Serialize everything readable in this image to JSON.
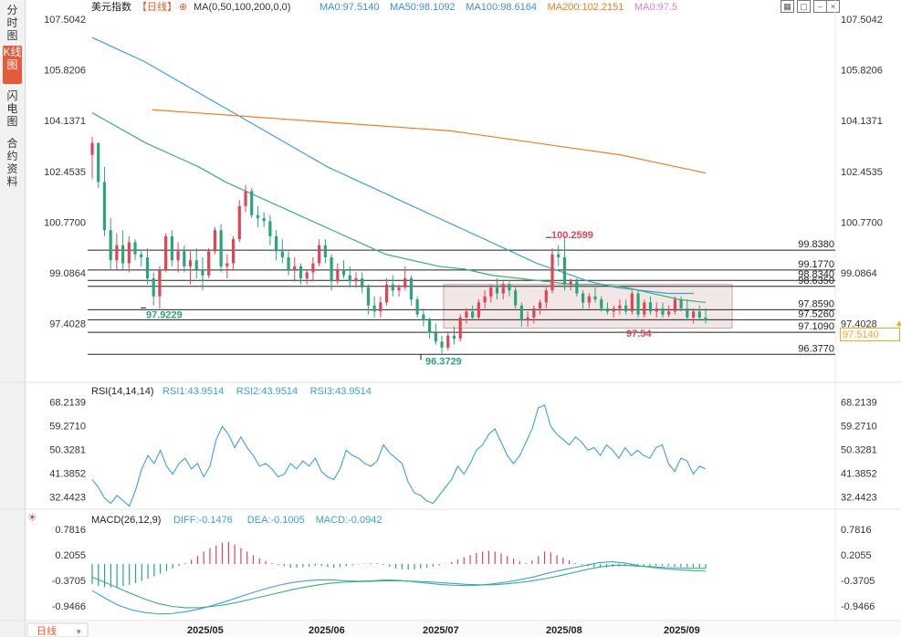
{
  "sidebar": {
    "tabs": [
      {
        "label": "分时图",
        "active": false
      },
      {
        "label": "K线图",
        "active": true
      },
      {
        "label": "闪电图",
        "active": false
      },
      {
        "label": "合约资料",
        "active": false
      }
    ]
  },
  "header": {
    "title": "美元指数",
    "period": "【日线】",
    "ma_params": "MA(0,50,100,200,0,0)",
    "ma_values": [
      {
        "label": "MA0:97.5140",
        "color": "#3b8fd9"
      },
      {
        "label": "MA50:98.1092",
        "color": "#3b8fd9"
      },
      {
        "label": "MA100:98.6164",
        "color": "#3b8fd9"
      },
      {
        "label": "MA200:102.2151",
        "color": "#f07c1e"
      },
      {
        "label": "MA0:97.5",
        "color": "#d77fd0"
      }
    ]
  },
  "period_button": "日线",
  "price_tag": "97.5140",
  "colors": {
    "up": "#e04455",
    "down": "#2aa57a",
    "ma50": "#3bb07a",
    "ma100": "#3ba0d8",
    "ma200": "#f07c1e",
    "rsi": "#3ba0d8",
    "diff": "#3ba0d8",
    "dea": "#3bb07a"
  },
  "chart_data": [
    {
      "type": "candlestick",
      "title": "美元指数",
      "y_ticks": [
        "107.5042",
        "105.8206",
        "104.1371",
        "102.4535",
        "100.7700",
        "99.0864",
        "97.4028"
      ],
      "ylim": [
        95.9,
        107.6
      ],
      "x_ticks": [
        "2025/05",
        "2025/06",
        "2025/07",
        "2025/08",
        "2025/09"
      ],
      "candles": [
        [
          103.0,
          103.6,
          102.2,
          103.4
        ],
        [
          103.4,
          103.4,
          101.9,
          102.1
        ],
        [
          102.1,
          102.6,
          100.3,
          100.5
        ],
        [
          100.5,
          100.9,
          99.2,
          99.5
        ],
        [
          99.5,
          100.4,
          99.2,
          100.0
        ],
        [
          100.0,
          100.5,
          99.2,
          99.4
        ],
        [
          99.4,
          100.3,
          99.1,
          100.1
        ],
        [
          100.1,
          100.2,
          99.5,
          99.7
        ],
        [
          99.7,
          99.8,
          99.3,
          99.6
        ],
        [
          99.6,
          99.9,
          98.7,
          98.9
        ],
        [
          98.9,
          99.1,
          98.0,
          98.3
        ],
        [
          98.3,
          99.3,
          97.9,
          99.2
        ],
        [
          99.2,
          100.4,
          99.1,
          100.3
        ],
        [
          100.3,
          100.5,
          99.3,
          99.5
        ],
        [
          99.5,
          100.1,
          99.1,
          99.8
        ],
        [
          99.8,
          100.0,
          99.1,
          99.3
        ],
        [
          99.3,
          99.8,
          98.7,
          99.5
        ],
        [
          99.5,
          99.9,
          98.9,
          99.2
        ],
        [
          99.2,
          99.6,
          98.5,
          99.0
        ],
        [
          99.0,
          99.9,
          98.9,
          99.8
        ],
        [
          99.8,
          100.6,
          99.7,
          100.5
        ],
        [
          100.5,
          100.7,
          99.1,
          99.3
        ],
        [
          99.3,
          99.7,
          98.9,
          99.4
        ],
        [
          99.4,
          100.3,
          99.2,
          100.2
        ],
        [
          100.2,
          101.5,
          100.1,
          101.3
        ],
        [
          101.3,
          102.0,
          101.1,
          101.8
        ],
        [
          101.8,
          101.9,
          100.9,
          101.0
        ],
        [
          101.0,
          101.3,
          100.6,
          100.9
        ],
        [
          100.9,
          101.1,
          100.6,
          100.8
        ],
        [
          100.8,
          101.0,
          100.0,
          100.3
        ],
        [
          100.3,
          100.5,
          99.5,
          99.8
        ],
        [
          99.8,
          100.2,
          99.4,
          99.6
        ],
        [
          99.6,
          99.8,
          99.0,
          99.2
        ],
        [
          99.2,
          99.6,
          98.8,
          99.3
        ],
        [
          99.3,
          99.4,
          98.7,
          98.9
        ],
        [
          98.9,
          99.2,
          98.7,
          99.1
        ],
        [
          99.1,
          99.6,
          98.8,
          99.4
        ],
        [
          99.4,
          100.2,
          99.3,
          100.0
        ],
        [
          100.0,
          100.2,
          99.4,
          99.6
        ],
        [
          99.6,
          99.7,
          98.5,
          98.8
        ],
        [
          98.8,
          99.4,
          98.7,
          99.2
        ],
        [
          99.2,
          99.5,
          98.9,
          99.0
        ],
        [
          99.0,
          99.3,
          98.6,
          98.8
        ],
        [
          98.8,
          99.1,
          98.6,
          98.9
        ],
        [
          98.9,
          99.1,
          98.4,
          98.6
        ],
        [
          98.6,
          98.7,
          97.7,
          98.0
        ],
        [
          98.0,
          98.3,
          97.6,
          97.8
        ],
        [
          97.8,
          98.3,
          97.6,
          98.1
        ],
        [
          98.1,
          98.9,
          98.0,
          98.7
        ],
        [
          98.7,
          99.0,
          98.3,
          98.5
        ],
        [
          98.5,
          98.7,
          98.3,
          98.6
        ],
        [
          98.6,
          99.3,
          98.5,
          98.9
        ],
        [
          98.9,
          99.0,
          98.0,
          98.2
        ],
        [
          98.2,
          98.3,
          97.6,
          97.7
        ],
        [
          97.7,
          97.9,
          97.3,
          97.5
        ],
        [
          97.5,
          97.6,
          96.9,
          97.1
        ],
        [
          97.1,
          97.4,
          96.7,
          96.8
        ],
        [
          96.8,
          97.0,
          96.4,
          96.6
        ],
        [
          96.6,
          97.1,
          96.5,
          97.0
        ],
        [
          97.0,
          97.3,
          96.7,
          96.9
        ],
        [
          96.9,
          97.7,
          96.8,
          97.6
        ],
        [
          97.6,
          97.9,
          97.4,
          97.8
        ],
        [
          97.8,
          98.0,
          97.5,
          97.6
        ],
        [
          97.6,
          98.2,
          97.5,
          98.1
        ],
        [
          98.1,
          98.5,
          97.9,
          98.3
        ],
        [
          98.3,
          98.7,
          98.1,
          98.6
        ],
        [
          98.6,
          98.9,
          98.2,
          98.4
        ],
        [
          98.4,
          98.8,
          98.2,
          98.7
        ],
        [
          98.7,
          98.8,
          98.3,
          98.5
        ],
        [
          98.5,
          98.6,
          97.9,
          98.0
        ],
        [
          98.0,
          98.1,
          97.3,
          97.5
        ],
        [
          97.5,
          97.8,
          97.3,
          97.6
        ],
        [
          97.6,
          98.0,
          97.4,
          97.9
        ],
        [
          97.9,
          98.2,
          97.7,
          98.1
        ],
        [
          98.1,
          98.6,
          97.9,
          98.5
        ],
        [
          98.5,
          99.9,
          98.4,
          99.7
        ],
        [
          99.7,
          100.0,
          99.3,
          99.6
        ],
        [
          99.6,
          100.3,
          98.5,
          98.7
        ],
        [
          98.7,
          98.9,
          98.5,
          98.8
        ],
        [
          98.8,
          98.9,
          98.3,
          98.4
        ],
        [
          98.4,
          98.5,
          97.9,
          98.1
        ],
        [
          98.1,
          98.4,
          97.9,
          98.3
        ],
        [
          98.3,
          98.6,
          98.1,
          98.2
        ],
        [
          98.2,
          98.3,
          97.8,
          97.9
        ],
        [
          97.9,
          98.1,
          97.7,
          97.8
        ],
        [
          97.8,
          98.0,
          97.6,
          97.9
        ],
        [
          97.9,
          98.2,
          97.7,
          98.0
        ],
        [
          98.0,
          98.2,
          97.7,
          97.8
        ],
        [
          97.8,
          98.5,
          97.7,
          98.4
        ],
        [
          98.4,
          98.5,
          97.6,
          97.7
        ],
        [
          97.7,
          98.2,
          97.6,
          98.1
        ],
        [
          98.1,
          98.3,
          97.7,
          97.8
        ],
        [
          97.8,
          98.1,
          97.6,
          97.9
        ],
        [
          97.9,
          98.1,
          97.6,
          97.7
        ],
        [
          97.7,
          98.0,
          97.6,
          97.8
        ],
        [
          97.8,
          98.3,
          97.7,
          98.2
        ],
        [
          98.2,
          98.3,
          97.8,
          97.9
        ],
        [
          97.9,
          98.2,
          97.5,
          97.6
        ],
        [
          97.6,
          97.9,
          97.4,
          97.8
        ],
        [
          97.8,
          98.0,
          97.5,
          97.6
        ],
        [
          97.6,
          97.9,
          97.4,
          97.5
        ]
      ],
      "ma100": [
        106.9,
        106.5,
        106.1,
        105.6,
        105.1,
        104.6,
        104.1,
        103.6,
        103.1,
        102.6,
        102.2,
        101.8,
        101.4,
        101.0,
        100.6,
        100.2,
        99.8,
        99.4,
        99.1,
        98.8,
        98.6,
        98.5,
        98.4,
        98.4
      ],
      "ma50": [
        104.4,
        103.9,
        103.4,
        103.0,
        102.6,
        102.1,
        101.7,
        101.3,
        100.9,
        100.5,
        100.1,
        99.7,
        99.5,
        99.3,
        99.2,
        99.0,
        98.9,
        98.8,
        98.7,
        98.7,
        98.6,
        98.4,
        98.2,
        98.1
      ],
      "ma200": [
        104.5,
        104.4,
        104.3,
        104.2,
        104.1,
        104.0,
        103.9,
        103.8,
        103.6,
        103.4,
        103.2,
        103.0,
        102.7,
        102.4
      ],
      "hlines": [
        99.838,
        99.177,
        98.834,
        98.635,
        97.859,
        97.526,
        97.109,
        96.377
      ],
      "hline_labels": [
        "99.8380",
        "99.1770",
        "98.8340",
        "98.6350",
        "97.8590",
        "97.5260",
        "97.1090",
        "96.3770"
      ],
      "annotations": [
        "100.2599",
        "97.9229",
        "96.3729",
        "97.54"
      ]
    },
    {
      "type": "line",
      "title": "RSI(14,14,14)",
      "legend": [
        "RSI1:43.9514",
        "RSI2:43.9514",
        "RSI3:43.9514"
      ],
      "y_ticks": [
        "68.2139",
        "59.2710",
        "50.3281",
        "41.3852",
        "32.4423"
      ],
      "ylim": [
        28.5,
        69.0
      ],
      "series": [
        {
          "name": "RSI1",
          "values": [
            39,
            36,
            32,
            30,
            33,
            31,
            29,
            35,
            43,
            48,
            45,
            50,
            44,
            41,
            45,
            47,
            43,
            45,
            40,
            44,
            54,
            59,
            56,
            51,
            55,
            51,
            48,
            44,
            45,
            43,
            40,
            41,
            45,
            43,
            46,
            44,
            47,
            42,
            40,
            39,
            43,
            50,
            48,
            47,
            45,
            44,
            46,
            52,
            49,
            47,
            45,
            38,
            34,
            33,
            31,
            30,
            33,
            36,
            39,
            44,
            41,
            45,
            50,
            52,
            56,
            58,
            53,
            48,
            45,
            48,
            53,
            58,
            66,
            67,
            59,
            56,
            54,
            52,
            55,
            53,
            50,
            51,
            48,
            52,
            50,
            47,
            51,
            48,
            50,
            48,
            47,
            51,
            52,
            45,
            42,
            47,
            46,
            41,
            44,
            43
          ]
        }
      ]
    },
    {
      "type": "bar",
      "title": "MACD(26,12,9)",
      "legend": [
        "DIFF:-0.1476",
        "DEA:-0.1005",
        "MACD:-0.0942"
      ],
      "y_ticks": [
        "0.7816",
        "0.2055",
        "-0.3705",
        "-0.9466"
      ],
      "ylim": [
        -1.28,
        0.95
      ],
      "macd": [
        -0.45,
        -0.5,
        -0.52,
        -0.53,
        -0.52,
        -0.5,
        -0.47,
        -0.43,
        -0.38,
        -0.33,
        -0.28,
        -0.22,
        -0.16,
        -0.1,
        -0.05,
        0.02,
        0.1,
        0.18,
        0.28,
        0.36,
        0.42,
        0.48,
        0.5,
        0.44,
        0.36,
        0.28,
        0.2,
        0.13,
        0.07,
        0.02,
        -0.02,
        -0.05,
        -0.08,
        -0.08,
        -0.07,
        -0.06,
        -0.04,
        -0.05,
        -0.07,
        -0.08,
        -0.07,
        -0.05,
        -0.03,
        -0.01,
        0.01,
        0.02,
        0.02,
        -0.02,
        -0.06,
        -0.1,
        -0.12,
        -0.13,
        -0.12,
        -0.1,
        -0.08,
        -0.06,
        -0.03,
        0.01,
        0.05,
        0.1,
        0.15,
        0.2,
        0.25,
        0.28,
        0.3,
        0.28,
        0.24,
        0.18,
        0.12,
        0.06,
        0.02,
        0.08,
        0.18,
        0.28,
        0.26,
        0.2,
        0.14,
        0.08,
        0.02,
        -0.02,
        -0.05,
        -0.07,
        -0.08,
        -0.08,
        -0.07,
        -0.06,
        -0.05,
        -0.05,
        -0.06,
        -0.06,
        -0.05,
        -0.04,
        -0.04,
        -0.05,
        -0.06,
        -0.07,
        -0.07,
        -0.08,
        -0.08,
        -0.09
      ],
      "diff": [
        -0.6,
        -0.78,
        -0.94,
        -1.04,
        -1.1,
        -1.13,
        -1.12,
        -1.08,
        -1.02,
        -0.94,
        -0.85,
        -0.75,
        -0.65,
        -0.56,
        -0.48,
        -0.42,
        -0.38,
        -0.36,
        -0.36,
        -0.38,
        -0.39,
        -0.38,
        -0.36,
        -0.37,
        -0.4,
        -0.43,
        -0.46,
        -0.48,
        -0.49,
        -0.48,
        -0.45,
        -0.41,
        -0.36,
        -0.3,
        -0.22,
        -0.15,
        -0.09,
        -0.03,
        0.03,
        0.05,
        0.02,
        -0.04,
        -0.08,
        -0.11,
        -0.13,
        -0.15,
        -0.16
      ],
      "dea": [
        -0.3,
        -0.42,
        -0.55,
        -0.68,
        -0.8,
        -0.9,
        -0.96,
        -0.99,
        -0.99,
        -0.96,
        -0.92,
        -0.86,
        -0.79,
        -0.72,
        -0.65,
        -0.58,
        -0.52,
        -0.47,
        -0.43,
        -0.41,
        -0.4,
        -0.39,
        -0.38,
        -0.38,
        -0.39,
        -0.4,
        -0.42,
        -0.44,
        -0.46,
        -0.47,
        -0.47,
        -0.45,
        -0.42,
        -0.38,
        -0.33,
        -0.27,
        -0.2,
        -0.13,
        -0.07,
        -0.03,
        -0.03,
        -0.05,
        -0.06,
        -0.08,
        -0.09,
        -0.1,
        -0.1
      ]
    }
  ]
}
